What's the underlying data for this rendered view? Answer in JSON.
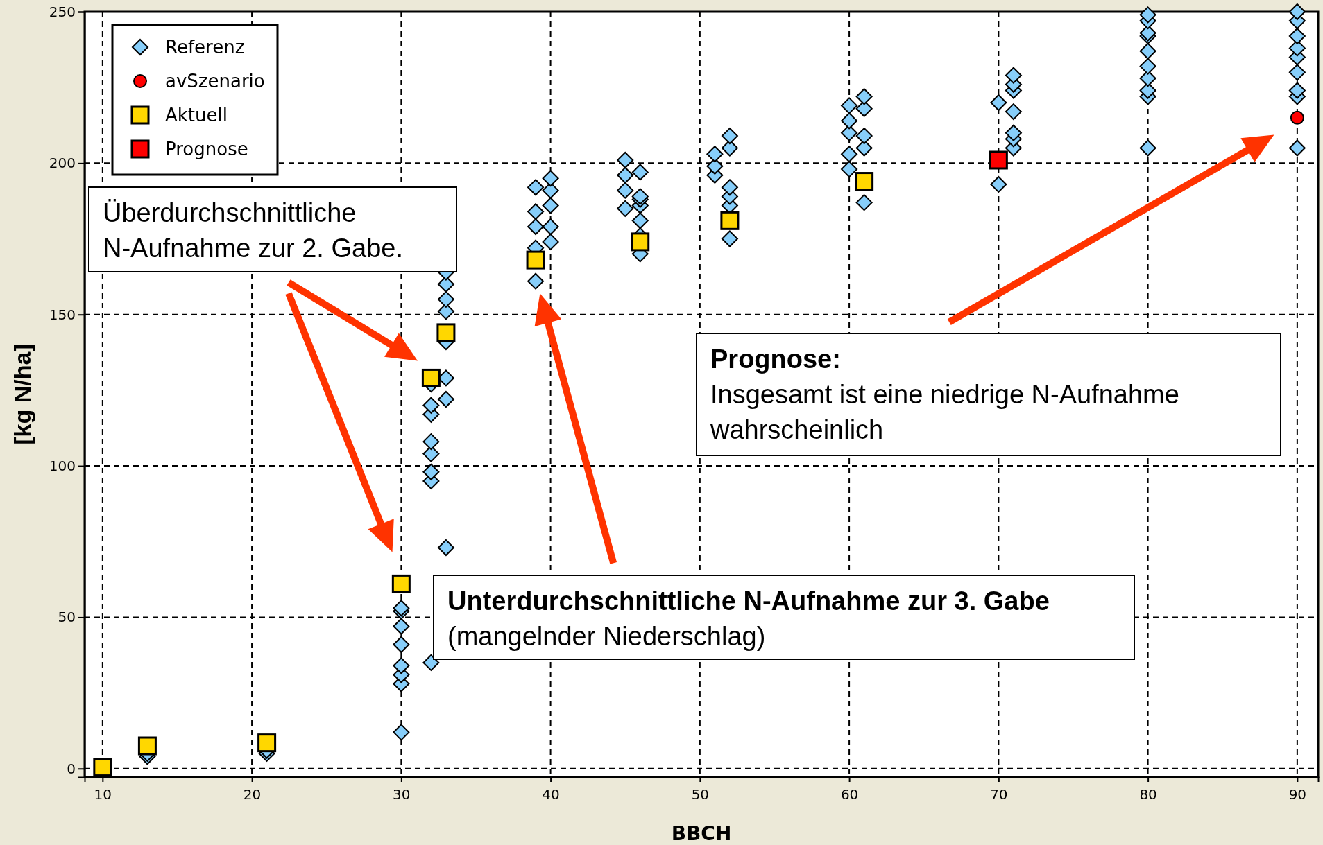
{
  "chart_data": {
    "type": "scatter",
    "xlabel": "BBCH",
    "ylabel": "[kg N/ha]",
    "xlim": [
      8.8,
      91.4
    ],
    "ylim": [
      -2.8,
      250
    ],
    "xticks": [
      10,
      20,
      30,
      40,
      50,
      60,
      70,
      80,
      90
    ],
    "yticks": [
      0,
      50,
      100,
      150,
      200,
      250
    ],
    "grid": true,
    "legend": "top left",
    "series": [
      {
        "name": "Referenz",
        "color": "#87cefa",
        "marker": "diamond",
        "x": [
          13,
          13,
          21,
          21,
          30,
          30,
          30,
          30,
          30,
          30,
          30,
          30,
          32,
          32,
          32,
          32,
          32,
          32,
          32,
          32,
          33,
          33,
          33,
          33,
          33,
          33,
          33,
          33,
          39,
          39,
          39,
          39,
          39,
          40,
          40,
          40,
          40,
          40,
          45,
          45,
          45,
          45,
          46,
          46,
          46,
          46,
          46,
          46,
          46,
          51,
          51,
          51,
          52,
          52,
          52,
          52,
          52,
          52,
          60,
          60,
          60,
          60,
          60,
          61,
          61,
          61,
          61,
          61,
          70,
          70,
          71,
          71,
          71,
          71,
          71,
          71,
          71,
          80,
          80,
          80,
          80,
          80,
          80,
          80,
          80,
          80,
          80,
          90,
          90,
          90,
          90,
          90,
          90,
          90,
          90,
          90
        ],
        "values": [
          4,
          5,
          5,
          6,
          12,
          28,
          31,
          34,
          41,
          47,
          52,
          53,
          35,
          95,
          98,
          104,
          108,
          117,
          120,
          127,
          73,
          122,
          129,
          141,
          151,
          155,
          160,
          164,
          161,
          172,
          179,
          184,
          192,
          174,
          179,
          186,
          191,
          195,
          185,
          191,
          196,
          201,
          170,
          176,
          181,
          186,
          188,
          189,
          197,
          196,
          199,
          203,
          175,
          186,
          189,
          192,
          205,
          209,
          198,
          203,
          210,
          214,
          219,
          187,
          205,
          209,
          218,
          222,
          193,
          220,
          205,
          208,
          210,
          217,
          224,
          226,
          229,
          205,
          222,
          224,
          228,
          232,
          237,
          242,
          243,
          247,
          249,
          205,
          222,
          224,
          230,
          235,
          238,
          242,
          247,
          250
        ]
      },
      {
        "name": "avSzenario",
        "color": "#ff0000",
        "marker": "circle",
        "x": [
          90
        ],
        "values": [
          215
        ]
      },
      {
        "name": "Aktuell",
        "color": "#ffd700",
        "marker": "square",
        "x": [
          10,
          13,
          21,
          30,
          32,
          33,
          39,
          46,
          52,
          61
        ],
        "values": [
          0.5,
          7.5,
          8.5,
          61,
          129,
          144,
          168,
          174,
          181,
          194
        ]
      },
      {
        "name": "Prognose",
        "color": "#ff0000",
        "marker": "square",
        "x": [
          70
        ],
        "values": [
          201
        ]
      }
    ],
    "annotations": [
      "Überdurchschnittliche\nN-Aufnahme zur 2. Gabe.",
      "Prognose:\nInsgesamt ist eine niedrige N-Aufnahme\nwahrscheinlich",
      "Unterdurchschnittliche N-Aufnahme zur 3. Gabe\n(mangelnder Niederschlag)"
    ]
  }
}
